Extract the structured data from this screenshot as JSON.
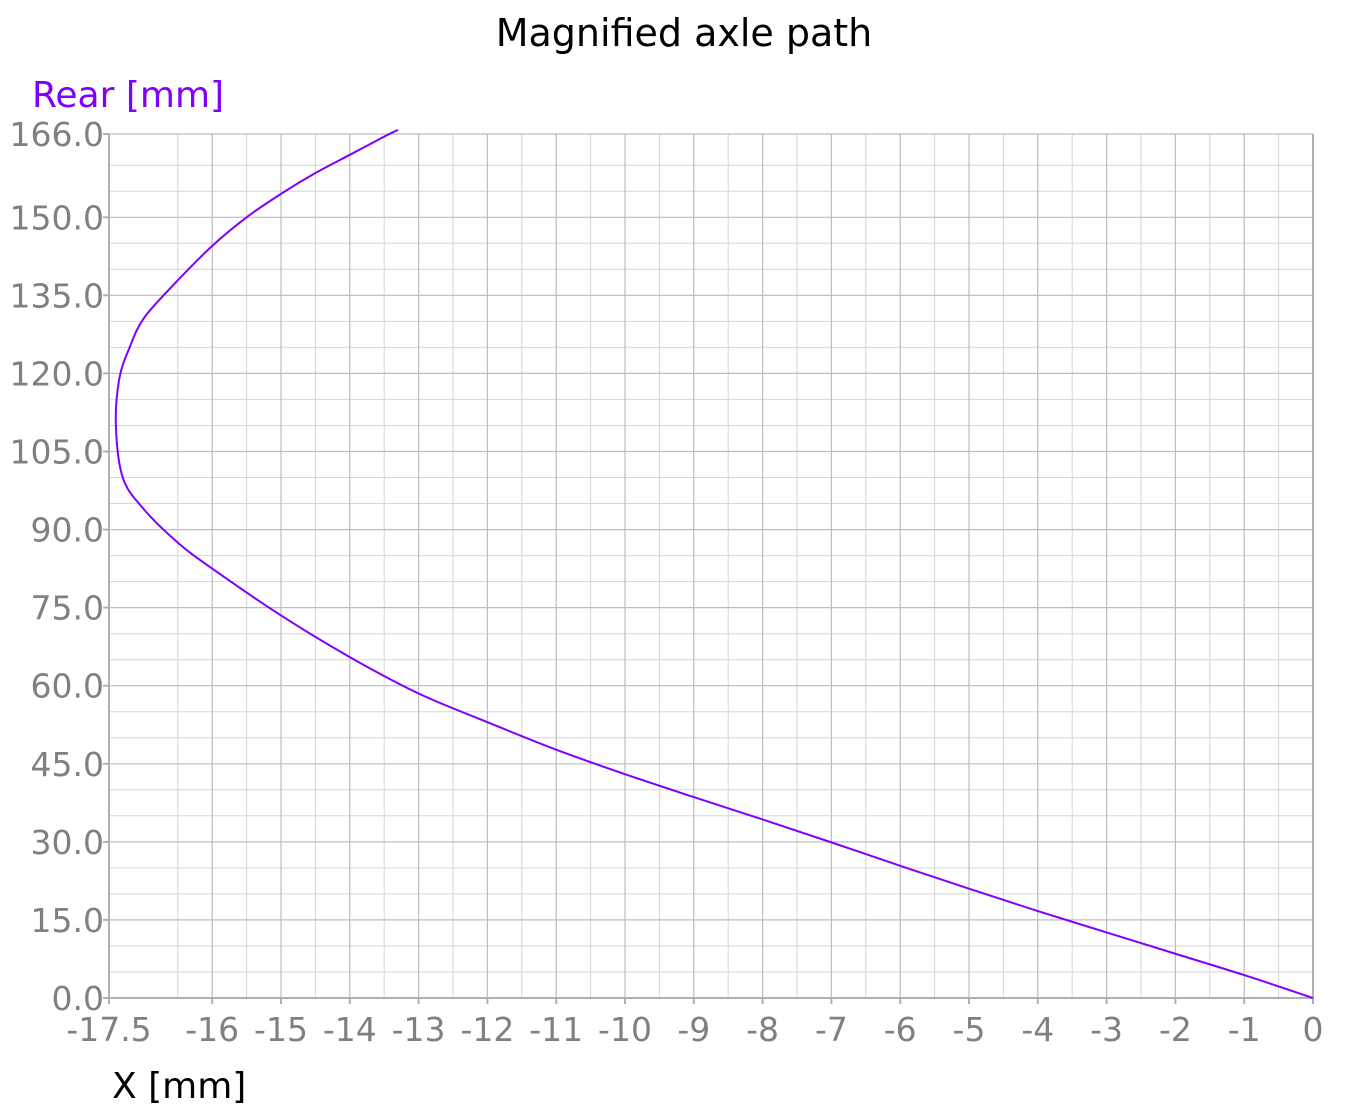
{
  "chart_data": {
    "type": "line",
    "title": "Magnified axle path",
    "xlabel": "X [mm]",
    "ylabel": "Rear [mm]",
    "xlim": [
      -17.5,
      0
    ],
    "ylim": [
      0,
      166
    ],
    "x_ticks": [
      -17.5,
      -16,
      -15,
      -14,
      -13,
      -12,
      -11,
      -10,
      -9,
      -8,
      -7,
      -6,
      -5,
      -4,
      -3,
      -2,
      -1,
      0
    ],
    "x_tick_labels": [
      "-17.5",
      "-16",
      "-15",
      "-14",
      "-13",
      "-12",
      "-11",
      "-10",
      "-9",
      "-8",
      "-7",
      "-6",
      "-5",
      "-4",
      "-3",
      "-2",
      "-1",
      "0"
    ],
    "y_ticks": [
      0,
      15,
      30,
      45,
      60,
      75,
      90,
      105,
      120,
      135,
      150,
      166
    ],
    "y_tick_labels": [
      "0.0",
      "15.0",
      "30.0",
      "45.0",
      "60.0",
      "75.0",
      "90.0",
      "105.0",
      "120.0",
      "135.0",
      "150.0",
      "166.0"
    ],
    "grid": true,
    "series": [
      {
        "color": "#7f00ff",
        "x": [
          0,
          -1,
          -2,
          -3,
          -4,
          -5,
          -6,
          -7,
          -8,
          -9,
          -10,
          -11,
          -12,
          -13,
          -14,
          -15,
          -16,
          -16.5,
          -17,
          -17.3,
          -17.4,
          -17.35,
          -17.2,
          -17,
          -16.6,
          -16,
          -15.5,
          -15,
          -14.5,
          -14,
          -13.5,
          -13.3
        ],
        "y": [
          0,
          4.4,
          8.5,
          12.6,
          16.7,
          21,
          25.4,
          29.9,
          34.3,
          38.6,
          43,
          47.7,
          53,
          58.5,
          65.5,
          73.5,
          82.5,
          87.5,
          94,
          100,
          110,
          119,
          125,
          130.5,
          136.5,
          144.5,
          150,
          154.5,
          158.5,
          162,
          165.5,
          166.8
        ]
      }
    ]
  }
}
